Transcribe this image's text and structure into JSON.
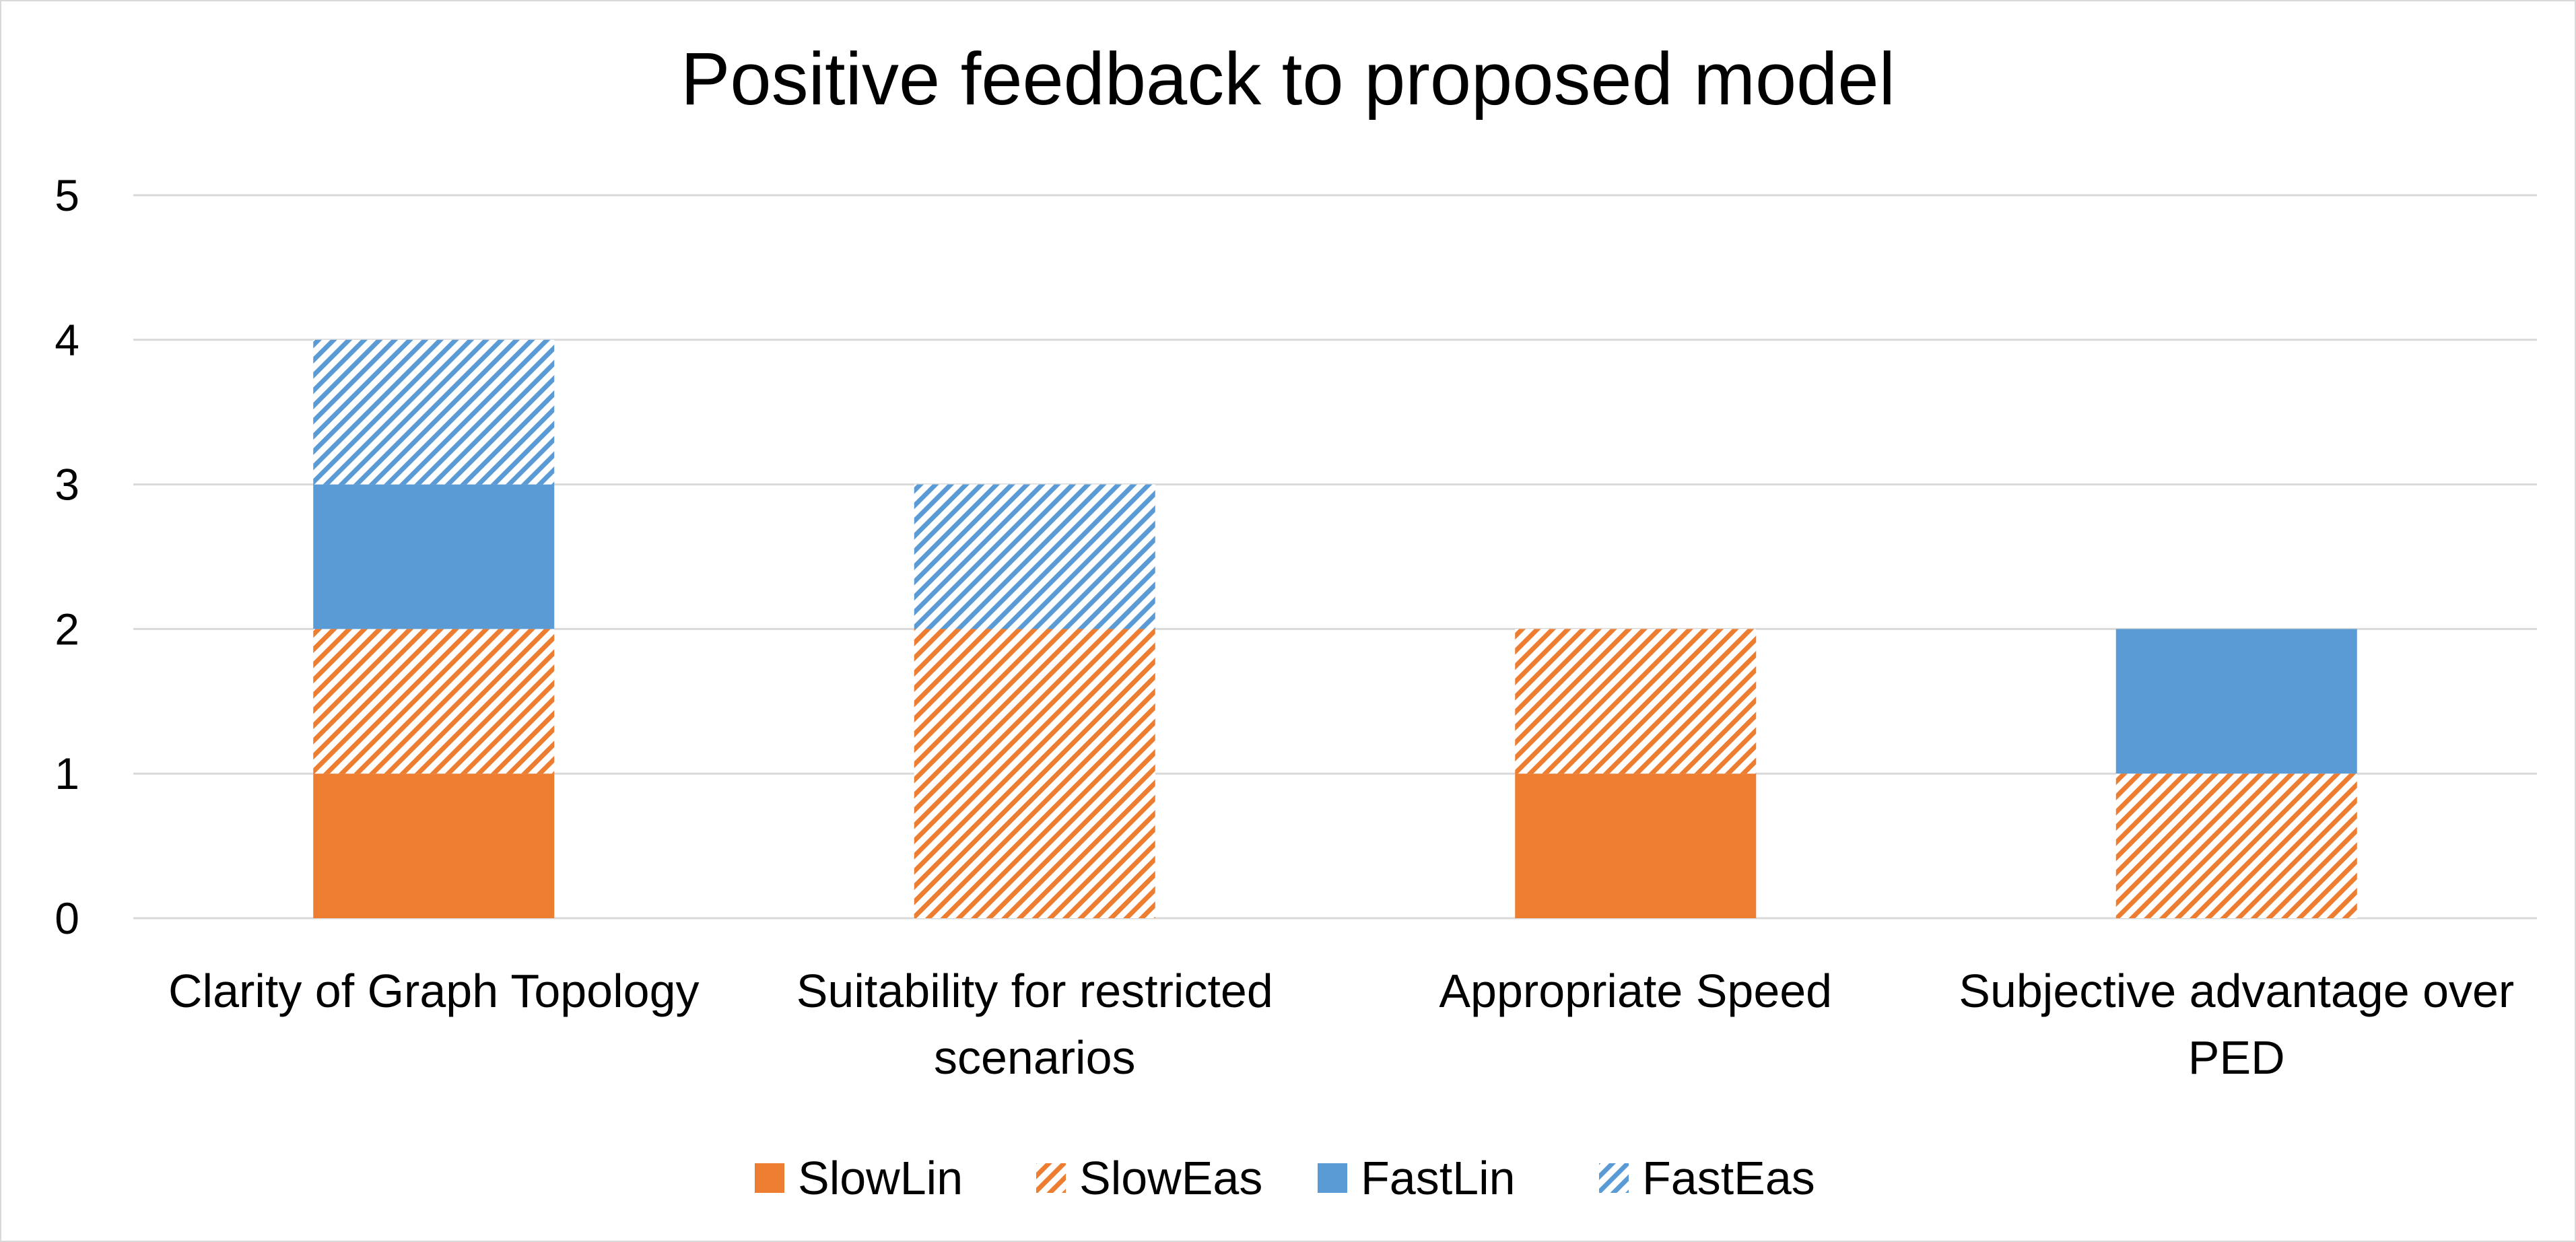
{
  "chart_data": {
    "type": "bar",
    "stacked": true,
    "title": "Positive feedback to proposed model",
    "xlabel": "",
    "ylabel": "",
    "ylim": [
      0,
      5
    ],
    "yticks": [
      "0",
      "1",
      "2",
      "3",
      "4",
      "5"
    ],
    "grid": true,
    "legend_position": "bottom",
    "categories": [
      [
        "Clarity of Graph Topology"
      ],
      [
        "Suitability for restricted",
        "scenarios"
      ],
      [
        "Appropriate Speed"
      ],
      [
        "Subjective advantage over",
        "PED"
      ]
    ],
    "series": [
      {
        "name": "SlowLin",
        "color": "#ED7D31",
        "pattern": "solid",
        "values": [
          1,
          0,
          1,
          0
        ]
      },
      {
        "name": "SlowEas",
        "color": "#ED7D31",
        "pattern": "diagonal-hatch",
        "values": [
          1,
          2,
          1,
          1
        ]
      },
      {
        "name": "FastLin",
        "color": "#5B9BD5",
        "pattern": "solid",
        "values": [
          1,
          0,
          0,
          1
        ]
      },
      {
        "name": "FastEas",
        "color": "#5B9BD5",
        "pattern": "diagonal-hatch",
        "values": [
          1,
          1,
          0,
          0
        ]
      }
    ]
  }
}
